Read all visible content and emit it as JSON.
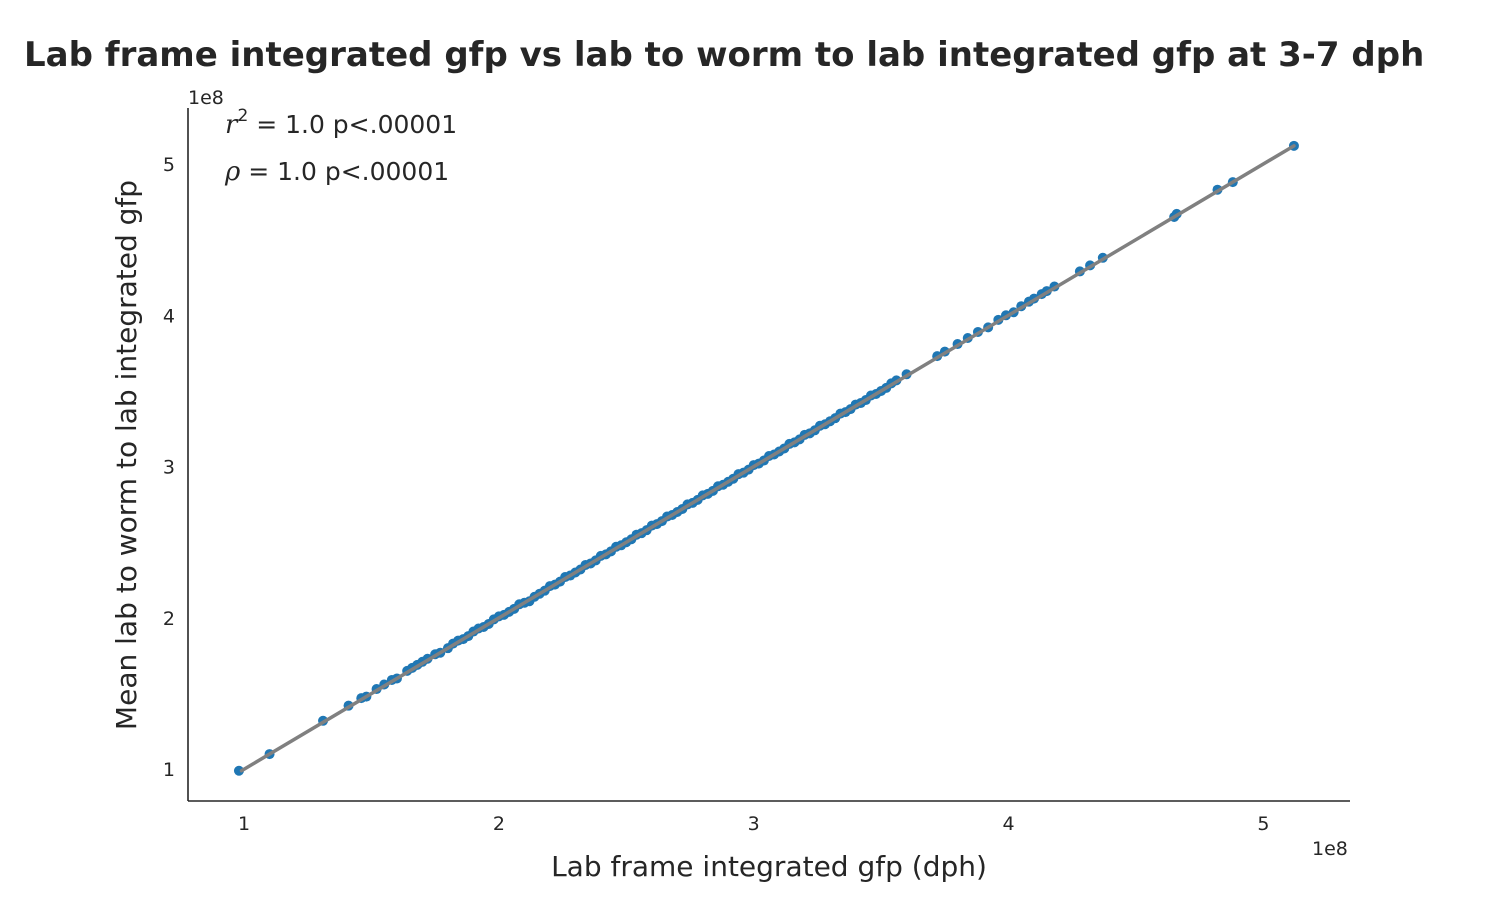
{
  "chart_data": {
    "type": "scatter",
    "title": "Lab frame integrated gfp vs lab to worm to lab integrated gfp at 3-7 dph",
    "xlabel": "Lab frame integrated gfp (dph)",
    "ylabel": "Mean lab to worm to lab integrated gfp",
    "x_offset_label": "1e8",
    "y_offset_label": "1e8",
    "xlim": [
      0.78,
      5.34
    ],
    "ylim": [
      0.79,
      5.37
    ],
    "x_ticks": [
      1,
      2,
      3,
      4,
      5
    ],
    "x_tick_labels": [
      "1",
      "2",
      "3",
      "4",
      "5"
    ],
    "y_ticks": [
      1,
      2,
      3,
      4,
      5
    ],
    "y_tick_labels": [
      "1",
      "2",
      "3",
      "4",
      "5"
    ],
    "grid": false,
    "point_color": "#1f77b4",
    "fit_line_color": "#808080",
    "fit_line": {
      "x": [
        0.99,
        5.12
      ],
      "y": [
        0.99,
        5.12
      ]
    },
    "annotations": {
      "r2_symbol": "r",
      "r2_sup": "2",
      "r2_text": " = 1.0 p<.00001",
      "rho_symbol": "ρ",
      "rho_text": " = 1.0 p<.00001"
    },
    "series": [
      {
        "x": [
          0.98,
          1.1,
          1.31,
          1.41,
          1.46,
          1.48,
          1.52,
          1.55,
          1.58,
          1.6,
          1.64,
          1.66,
          1.68,
          1.7,
          1.72,
          1.75,
          1.77,
          1.8,
          1.82,
          1.84,
          1.86,
          1.88,
          1.9,
          1.92,
          1.94,
          1.96,
          1.98,
          2.0,
          2.02,
          2.04,
          2.06,
          2.08,
          2.1,
          2.12,
          2.14,
          2.16,
          2.18,
          2.2,
          2.22,
          2.24,
          2.26,
          2.28,
          2.3,
          2.32,
          2.34,
          2.36,
          2.38,
          2.4,
          2.42,
          2.44,
          2.46,
          2.48,
          2.5,
          2.52,
          2.54,
          2.56,
          2.58,
          2.6,
          2.62,
          2.64,
          2.66,
          2.68,
          2.7,
          2.72,
          2.74,
          2.76,
          2.78,
          2.8,
          2.82,
          2.84,
          2.86,
          2.88,
          2.9,
          2.92,
          2.94,
          2.96,
          2.98,
          3.0,
          3.02,
          3.04,
          3.06,
          3.08,
          3.1,
          3.12,
          3.14,
          3.16,
          3.18,
          3.2,
          3.22,
          3.24,
          3.26,
          3.28,
          3.3,
          3.32,
          3.34,
          3.36,
          3.38,
          3.4,
          3.42,
          3.44,
          3.46,
          3.48,
          3.5,
          3.52,
          3.54,
          3.56,
          3.6,
          3.72,
          3.75,
          3.8,
          3.84,
          3.88,
          3.92,
          3.96,
          3.99,
          4.02,
          4.05,
          4.08,
          4.1,
          4.13,
          4.15,
          4.18,
          4.28,
          4.32,
          4.37,
          4.65,
          4.66,
          4.82,
          4.88,
          5.12
        ],
        "y": [
          0.99,
          1.1,
          1.32,
          1.42,
          1.47,
          1.48,
          1.53,
          1.56,
          1.59,
          1.6,
          1.65,
          1.67,
          1.69,
          1.71,
          1.73,
          1.76,
          1.77,
          1.8,
          1.83,
          1.85,
          1.86,
          1.88,
          1.91,
          1.93,
          1.94,
          1.96,
          1.99,
          2.01,
          2.02,
          2.04,
          2.06,
          2.09,
          2.1,
          2.11,
          2.14,
          2.16,
          2.18,
          2.21,
          2.22,
          2.24,
          2.27,
          2.28,
          2.3,
          2.32,
          2.35,
          2.36,
          2.38,
          2.41,
          2.42,
          2.44,
          2.47,
          2.48,
          2.5,
          2.52,
          2.55,
          2.56,
          2.58,
          2.61,
          2.62,
          2.64,
          2.67,
          2.68,
          2.7,
          2.72,
          2.75,
          2.76,
          2.78,
          2.81,
          2.82,
          2.84,
          2.87,
          2.88,
          2.9,
          2.92,
          2.95,
          2.96,
          2.98,
          3.01,
          3.02,
          3.04,
          3.07,
          3.08,
          3.1,
          3.12,
          3.15,
          3.16,
          3.18,
          3.21,
          3.22,
          3.24,
          3.27,
          3.28,
          3.3,
          3.32,
          3.35,
          3.36,
          3.38,
          3.41,
          3.42,
          3.44,
          3.47,
          3.48,
          3.5,
          3.52,
          3.55,
          3.57,
          3.61,
          3.73,
          3.76,
          3.81,
          3.85,
          3.89,
          3.92,
          3.97,
          4.0,
          4.02,
          4.06,
          4.09,
          4.11,
          4.14,
          4.16,
          4.19,
          4.29,
          4.33,
          4.38,
          4.65,
          4.67,
          4.83,
          4.88,
          5.12
        ]
      }
    ]
  }
}
